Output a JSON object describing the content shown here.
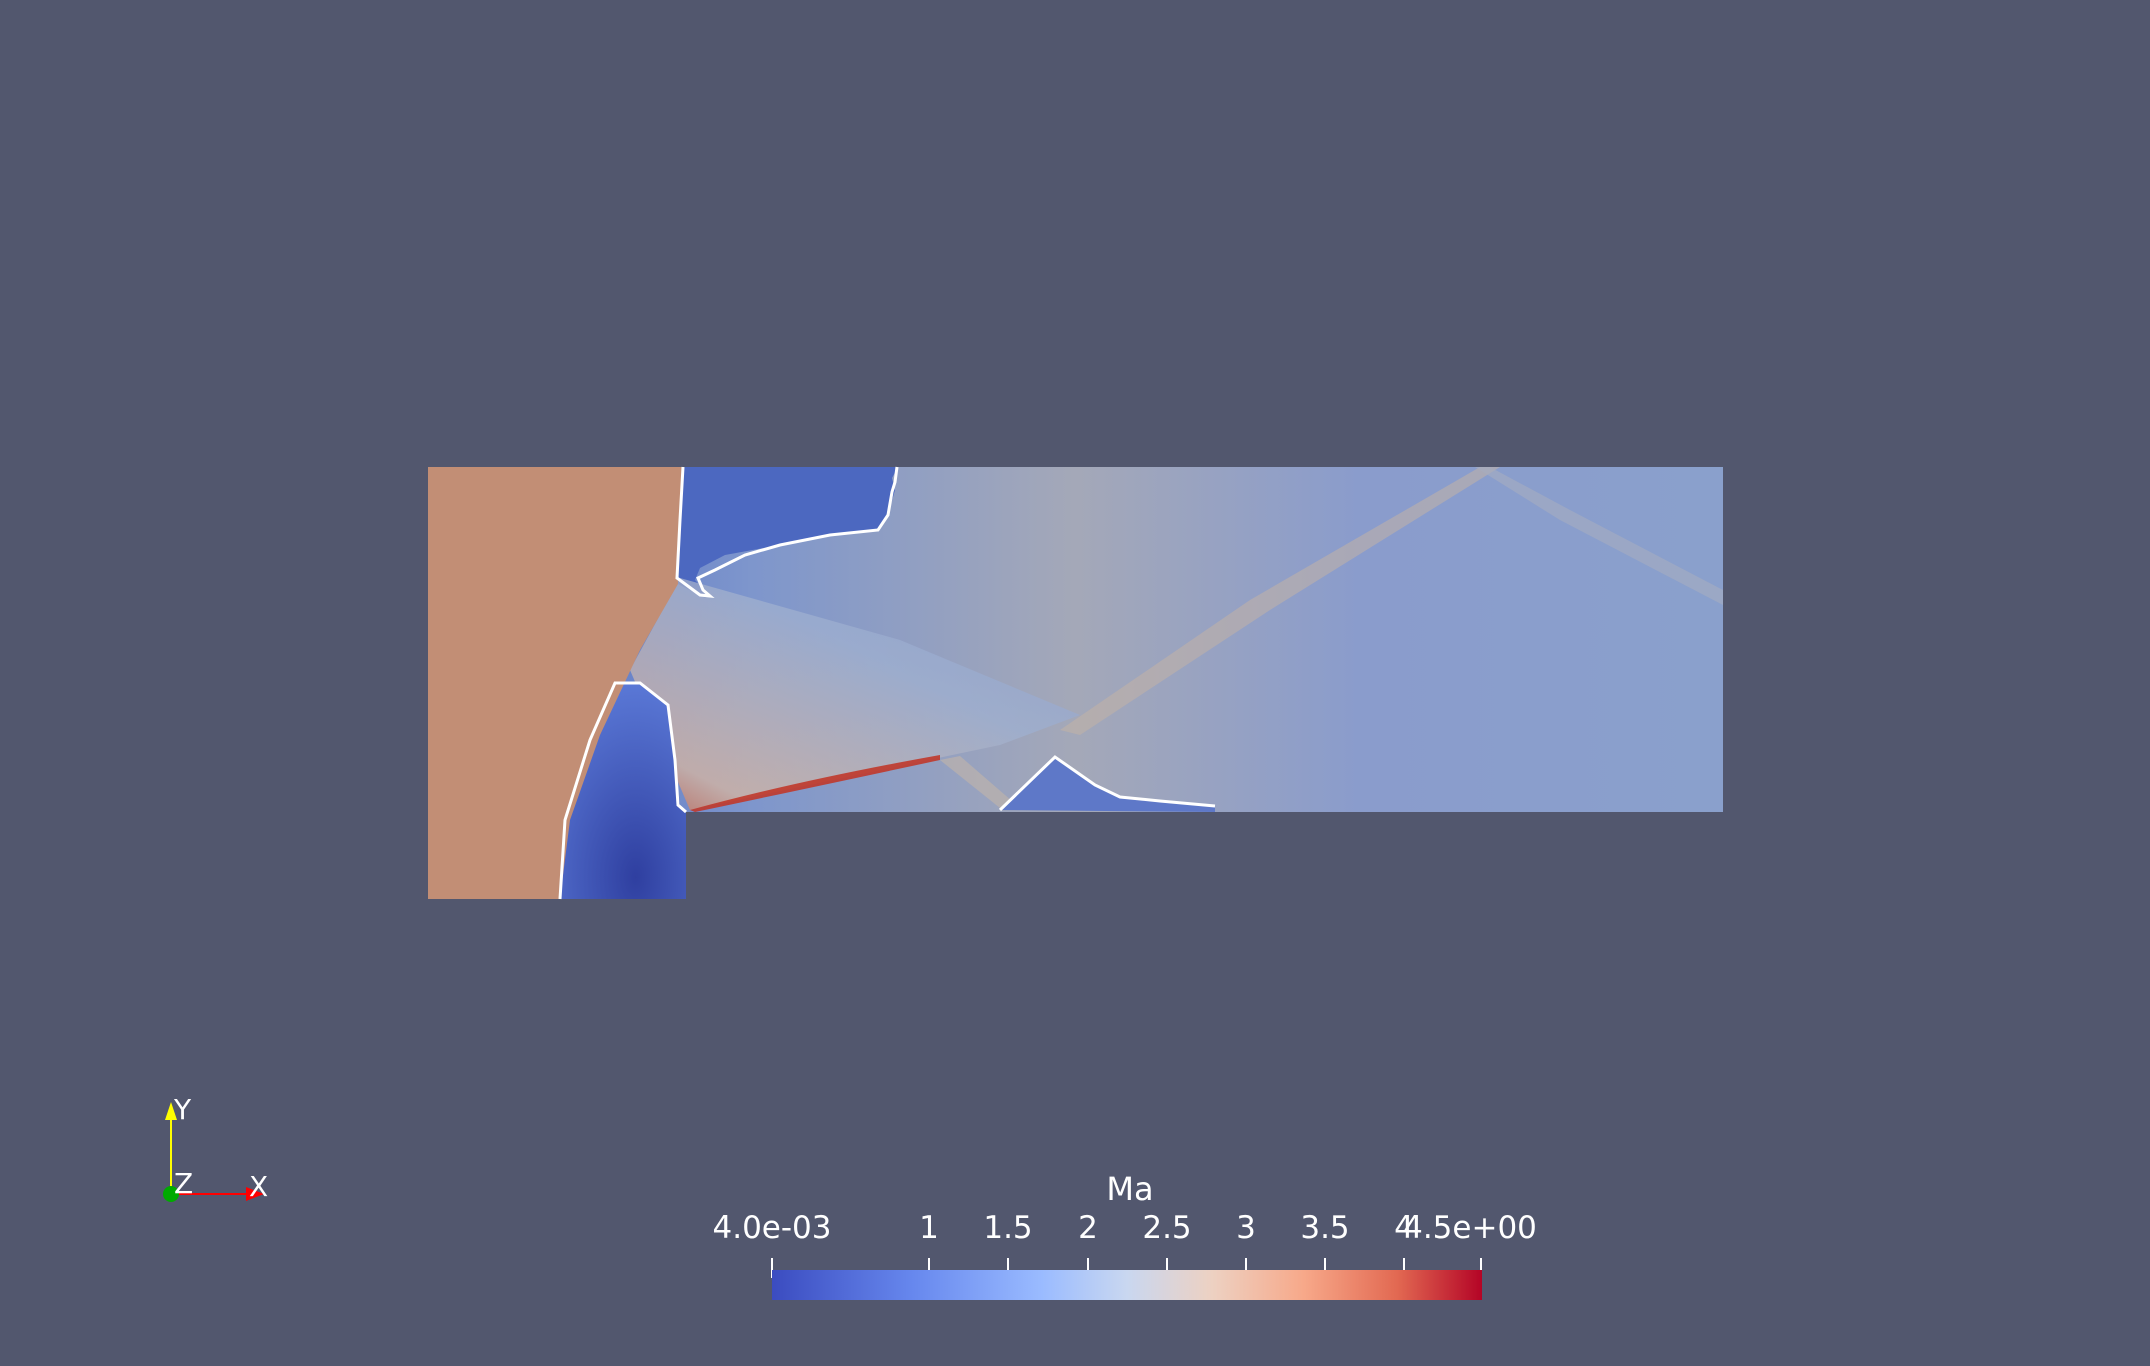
{
  "view": {
    "background": "#52576e"
  },
  "colorbar": {
    "title": "Ma",
    "min_label": "4.0e-03",
    "max_label": "4.5e+00",
    "ticks": [
      "1",
      "1.5",
      "2",
      "2.5",
      "3",
      "3.5",
      "4"
    ],
    "colormap": "Cool to Warm"
  },
  "axes_triad": {
    "x_label": "X",
    "y_label": "Y",
    "z_label": "Z",
    "x_color": "#ff0000",
    "y_color": "#ffff00",
    "z_color": "#00aa00"
  }
}
